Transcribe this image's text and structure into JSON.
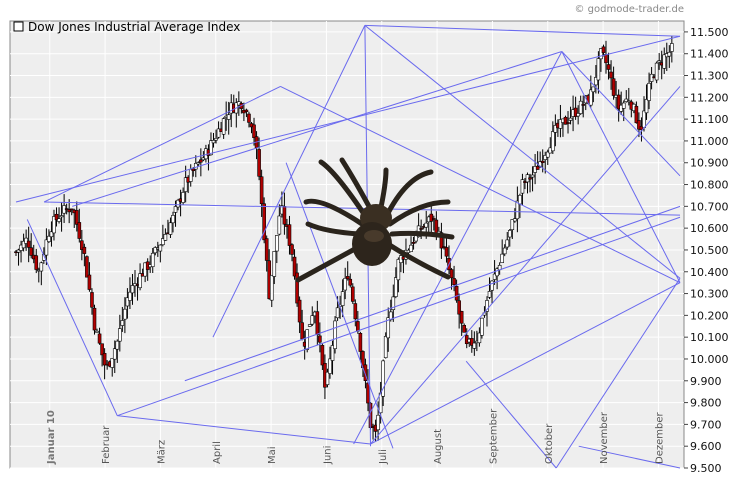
{
  "watermark": "© godmode-trader.de",
  "chart_data": {
    "type": "candlestick",
    "title": "",
    "legend": [
      {
        "label": "Dow Jones Industrial Average Index",
        "marker": "empty-square",
        "placement": "top-left"
      }
    ],
    "ylim": [
      9500,
      11550
    ],
    "yticks": [
      "11.500",
      "11.400",
      "11.300",
      "11.200",
      "11.100",
      "11.000",
      "10.900",
      "10.800",
      "10.700",
      "10.600",
      "10.500",
      "10.400",
      "10.300",
      "10.200",
      "10.100",
      "10.000",
      "9.900",
      "9.800",
      "9.700",
      "9.600",
      "9.500"
    ],
    "ytick_values": [
      11500,
      11400,
      11300,
      11200,
      11100,
      11000,
      10900,
      10800,
      10700,
      10600,
      10500,
      10400,
      10300,
      10200,
      10100,
      10000,
      9900,
      9800,
      9700,
      9600,
      9500
    ],
    "x_month_labels": [
      "Januar 10",
      "Februar",
      "März",
      "April",
      "Mai",
      "Juni",
      "Juli",
      "August",
      "September",
      "Oktober",
      "November",
      "Dezember"
    ],
    "x_label_emphasis": [
      true,
      false,
      false,
      false,
      false,
      false,
      false,
      false,
      false,
      false,
      false,
      false
    ],
    "grid": true,
    "colors": {
      "background": "#eeeeee",
      "grid": "#ffffff",
      "up": "#ffffff",
      "down": "#b00000",
      "wick": "#000000",
      "overlay_lines": "#6a6aee"
    },
    "close_path": [
      {
        "t": 0,
        "v": 10490
      },
      {
        "t": 2,
        "v": 10550
      },
      {
        "t": 4,
        "v": 10400
      },
      {
        "t": 6,
        "v": 10600
      },
      {
        "t": 8,
        "v": 10670
      },
      {
        "t": 10,
        "v": 10700
      },
      {
        "t": 12,
        "v": 10500
      },
      {
        "t": 14,
        "v": 10150
      },
      {
        "t": 16,
        "v": 9950
      },
      {
        "t": 18,
        "v": 10080
      },
      {
        "t": 20,
        "v": 10300
      },
      {
        "t": 22,
        "v": 10380
      },
      {
        "t": 24,
        "v": 10450
      },
      {
        "t": 26,
        "v": 10550
      },
      {
        "t": 28,
        "v": 10650
      },
      {
        "t": 30,
        "v": 10800
      },
      {
        "t": 32,
        "v": 10880
      },
      {
        "t": 34,
        "v": 10950
      },
      {
        "t": 36,
        "v": 11050
      },
      {
        "t": 38,
        "v": 11150
      },
      {
        "t": 40,
        "v": 11180
      },
      {
        "t": 42,
        "v": 11080
      },
      {
        "t": 43,
        "v": 10900
      },
      {
        "t": 45,
        "v": 10300
      },
      {
        "t": 47,
        "v": 10700
      },
      {
        "t": 49,
        "v": 10500
      },
      {
        "t": 51,
        "v": 10050
      },
      {
        "t": 53,
        "v": 10250
      },
      {
        "t": 55,
        "v": 9850
      },
      {
        "t": 57,
        "v": 10200
      },
      {
        "t": 59,
        "v": 10400
      },
      {
        "t": 61,
        "v": 10100
      },
      {
        "t": 63,
        "v": 9700
      },
      {
        "t": 64,
        "v": 9650
      },
      {
        "t": 66,
        "v": 10150
      },
      {
        "t": 68,
        "v": 10450
      },
      {
        "t": 70,
        "v": 10520
      },
      {
        "t": 72,
        "v": 10600
      },
      {
        "t": 74,
        "v": 10650
      },
      {
        "t": 76,
        "v": 10500
      },
      {
        "t": 78,
        "v": 10300
      },
      {
        "t": 80,
        "v": 10050
      },
      {
        "t": 82,
        "v": 10100
      },
      {
        "t": 84,
        "v": 10300
      },
      {
        "t": 86,
        "v": 10450
      },
      {
        "t": 88,
        "v": 10600
      },
      {
        "t": 90,
        "v": 10800
      },
      {
        "t": 92,
        "v": 10850
      },
      {
        "t": 94,
        "v": 10950
      },
      {
        "t": 96,
        "v": 11050
      },
      {
        "t": 98,
        "v": 11100
      },
      {
        "t": 100,
        "v": 11150
      },
      {
        "t": 102,
        "v": 11200
      },
      {
        "t": 104,
        "v": 11400
      },
      {
        "t": 105,
        "v": 11350
      },
      {
        "t": 107,
        "v": 11150
      },
      {
        "t": 109,
        "v": 11200
      },
      {
        "t": 111,
        "v": 11050
      },
      {
        "t": 113,
        "v": 11300
      },
      {
        "t": 115,
        "v": 11380
      },
      {
        "t": 117,
        "v": 11430
      }
    ],
    "t_max": 118,
    "overlay_lines": [
      [
        [
          10,
          10700
        ],
        [
          97,
          11410
        ]
      ],
      [
        [
          97,
          11410
        ],
        [
          60,
          9610
        ]
      ],
      [
        [
          97,
          11410
        ],
        [
          118,
          10350
        ]
      ],
      [
        [
          97,
          11410
        ],
        [
          118,
          10840
        ]
      ],
      [
        [
          0,
          10720
        ],
        [
          118,
          11480
        ]
      ],
      [
        [
          62,
          11530
        ],
        [
          118,
          11480
        ]
      ],
      [
        [
          62,
          11530
        ],
        [
          118,
          10370
        ]
      ],
      [
        [
          62,
          11530
        ],
        [
          35,
          10100
        ]
      ],
      [
        [
          47,
          11250
        ],
        [
          118,
          10350
        ]
      ],
      [
        [
          47,
          11250
        ],
        [
          5,
          10720
        ]
      ],
      [
        [
          2,
          10640
        ],
        [
          18,
          9740
        ]
      ],
      [
        [
          18,
          9740
        ],
        [
          118,
          10650
        ]
      ],
      [
        [
          18,
          9740
        ],
        [
          63,
          9610
        ]
      ],
      [
        [
          63,
          9610
        ],
        [
          118,
          11250
        ]
      ],
      [
        [
          63,
          9610
        ],
        [
          118,
          10350
        ]
      ],
      [
        [
          63,
          9600
        ],
        [
          62,
          11530
        ]
      ],
      [
        [
          30,
          9900
        ],
        [
          118,
          10700
        ]
      ],
      [
        [
          5,
          10720
        ],
        [
          118,
          10660
        ]
      ],
      [
        [
          96,
          9500
        ],
        [
          118,
          10370
        ]
      ],
      [
        [
          96,
          9500
        ],
        [
          80,
          9990
        ]
      ],
      [
        [
          48,
          10900
        ],
        [
          67,
          9590
        ]
      ],
      [
        [
          100,
          9600
        ],
        [
          118,
          9500
        ]
      ]
    ],
    "illustration": "spider"
  }
}
